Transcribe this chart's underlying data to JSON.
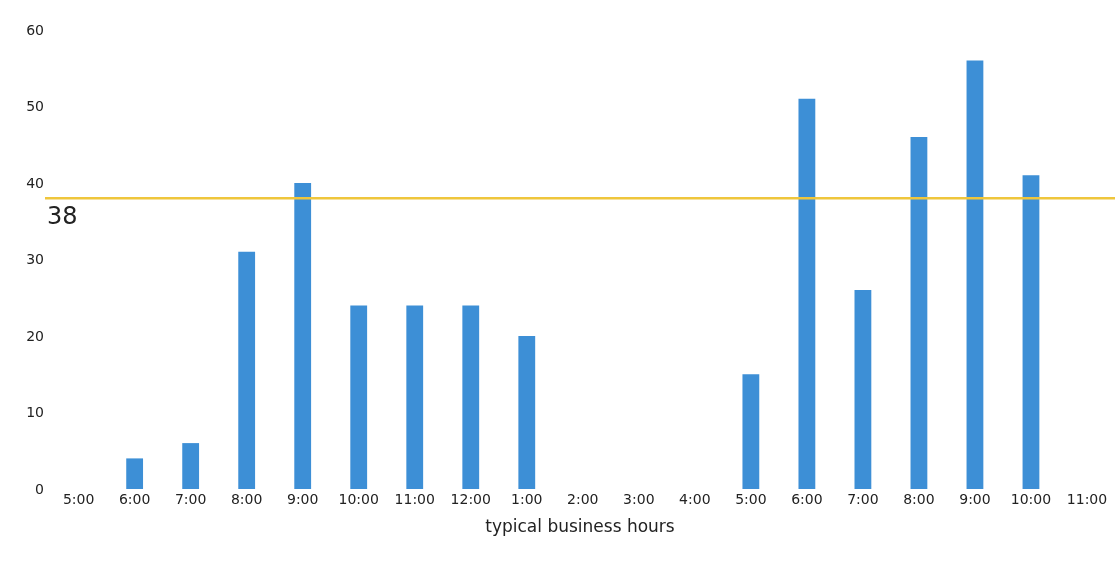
{
  "chart_data": {
    "type": "bar",
    "categories": [
      "5:00",
      "6:00",
      "7:00",
      "8:00",
      "9:00",
      "10:00",
      "11:00",
      "12:00",
      "1:00",
      "2:00",
      "3:00",
      "4:00",
      "5:00",
      "6:00",
      "7:00",
      "8:00",
      "9:00",
      "10:00",
      "11:00"
    ],
    "values": [
      0,
      4,
      6,
      31,
      40,
      24,
      24,
      24,
      20,
      0,
      0,
      0,
      15,
      51,
      26,
      46,
      56,
      41,
      0
    ],
    "color": "#3d8fd6",
    "ylim": [
      0,
      60
    ],
    "yticks": [
      0,
      10,
      20,
      30,
      40,
      50,
      60
    ],
    "ref_lines": [
      {
        "axis": "y",
        "value": 38,
        "label": "38",
        "color": "#efc63c"
      }
    ],
    "xlabel": "typical business hours"
  }
}
